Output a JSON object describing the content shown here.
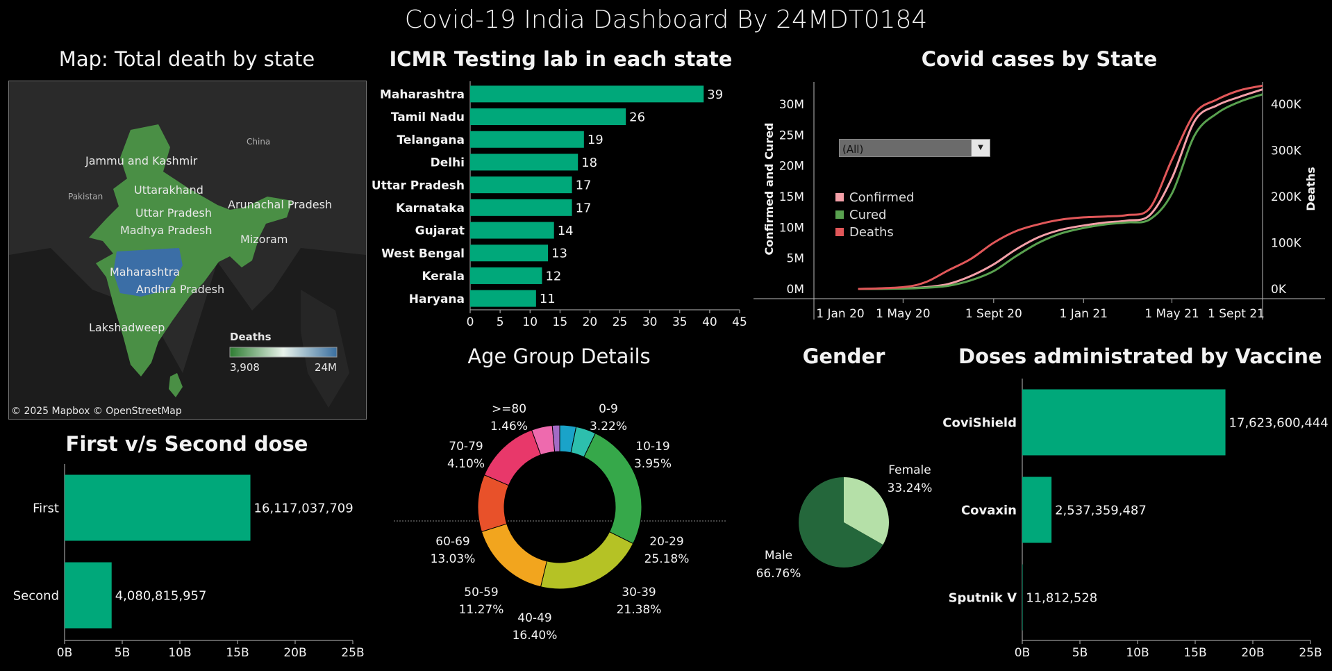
{
  "dashboard": {
    "title": "Covid-19 India Dashboard By 24MDT0184"
  },
  "map": {
    "title": "Map: Total death by state",
    "attribution": "© 2025 Mapbox © OpenStreetMap",
    "country_labels": [
      "China",
      "Pakistan"
    ],
    "state_labels": [
      "Jammu and Kashmir",
      "Uttarakhand",
      "Arunachal Pradesh",
      "Uttar Pradesh",
      "Madhya Pradesh",
      "Mizoram",
      "Maharashtra",
      "Andhra Pradesh",
      "Lakshadweep"
    ],
    "legend_title": "Deaths",
    "legend_min": "3,908",
    "legend_max": "24M",
    "colors": {
      "low": "#2e7d32",
      "mid": "#e8f2ea",
      "high": "#3a6fa0",
      "land": "#4a8f45",
      "highlight": "#3b6ea6"
    }
  },
  "chart_data": [
    {
      "type": "bar",
      "orientation": "horizontal",
      "title": "ICMR Testing lab in each state",
      "categories": [
        "Maharashtra",
        "Tamil Nadu",
        "Telangana",
        "Delhi",
        "Uttar Pradesh",
        "Karnataka",
        "Gujarat",
        "West Bengal",
        "Kerala",
        "Haryana"
      ],
      "values": [
        39,
        26,
        19,
        18,
        17,
        17,
        14,
        13,
        12,
        11
      ],
      "xlim": [
        0,
        45
      ],
      "xticks": [
        "0",
        "5",
        "10",
        "15",
        "20",
        "25",
        "30",
        "35",
        "40",
        "45"
      ],
      "color": "#00a87a"
    },
    {
      "type": "line",
      "title": "Covid cases by State",
      "filter": "(All)",
      "ylabel": "Confirmed and Cured",
      "y2label": "Deaths",
      "yticks": [
        "30M",
        "25M",
        "20M",
        "15M",
        "10M",
        "5M",
        "0M"
      ],
      "y2ticks": [
        "400K",
        "300K",
        "200K",
        "100K",
        "0K"
      ],
      "xticks": [
        "1 Jan 20",
        "1 May 20",
        "1 Sept 20",
        "1 Jan 21",
        "1 May 21",
        "1 Sept 21"
      ],
      "x": [
        "2020-03-01",
        "2020-05-01",
        "2020-06-01",
        "2020-07-01",
        "2020-08-01",
        "2020-09-01",
        "2020-10-01",
        "2020-11-01",
        "2020-12-01",
        "2021-01-01",
        "2021-02-01",
        "2021-03-01",
        "2021-04-01",
        "2021-05-01",
        "2021-06-01",
        "2021-07-01",
        "2021-08-01",
        "2021-09-01"
      ],
      "series": [
        {
          "name": "Confirmed",
          "axis": "left",
          "color": "#f4a0a8",
          "values": [
            0,
            0.1,
            0.3,
            0.8,
            2.1,
            4.0,
            6.4,
            8.4,
            9.6,
            10.3,
            10.8,
            11.1,
            12.0,
            18.0,
            27.3,
            29.8,
            31.2,
            32.4
          ]
        },
        {
          "name": "Cured",
          "axis": "left",
          "color": "#59a14f",
          "values": [
            0,
            0.05,
            0.2,
            0.5,
            1.4,
            2.9,
            5.3,
            7.5,
            9.0,
            9.9,
            10.5,
            10.8,
            11.3,
            15.5,
            25.0,
            28.5,
            30.4,
            31.6
          ]
        },
        {
          "name": "Deaths",
          "axis": "right",
          "color": "#e15759",
          "values": [
            0,
            3908,
            15000,
            40000,
            65000,
            100000,
            125000,
            140000,
            150000,
            155000,
            157000,
            160000,
            175000,
            280000,
            380000,
            410000,
            430000,
            440000
          ]
        }
      ]
    },
    {
      "type": "pie",
      "title": "Age Group Details",
      "donut": true,
      "categories": [
        "0-9",
        "10-19",
        "20-29",
        "30-39",
        "40-49",
        "50-59",
        "60-69",
        "70-79",
        ">=80"
      ],
      "values": [
        3.22,
        3.95,
        25.18,
        21.38,
        16.4,
        11.27,
        13.03,
        4.1,
        1.46
      ],
      "labels": [
        "3.22%",
        "3.95%",
        "25.18%",
        "21.38%",
        "16.40%",
        "11.27%",
        "13.03%",
        "4.10%",
        "1.46%"
      ],
      "colors": [
        "#1aa3c9",
        "#2dbfad",
        "#36a84a",
        "#b5c225",
        "#f2a51e",
        "#e8512a",
        "#e8386a",
        "#ee6aae",
        "#a36bc5"
      ]
    },
    {
      "type": "pie",
      "title": "Gender",
      "categories": [
        "Female",
        "Male"
      ],
      "values": [
        33.24,
        66.76
      ],
      "labels": [
        "33.24%",
        "66.76%"
      ],
      "colors": [
        "#b5e0a8",
        "#24673b"
      ]
    },
    {
      "type": "bar",
      "orientation": "horizontal",
      "title": "First v/s Second dose",
      "categories": [
        "First",
        "Second"
      ],
      "values": [
        16117037709,
        4080815957
      ],
      "labels": [
        "16,117,037,709",
        "4,080,815,957"
      ],
      "xlim": [
        0,
        25000000000
      ],
      "xticks": [
        "0B",
        "5B",
        "10B",
        "15B",
        "20B",
        "25B"
      ],
      "color": "#00a87a"
    },
    {
      "type": "bar",
      "orientation": "horizontal",
      "title": "Doses administrated by Vaccine",
      "categories": [
        "CoviShield",
        "Covaxin",
        "Sputnik V"
      ],
      "values": [
        17623600444,
        2537359487,
        11812528
      ],
      "labels": [
        "17,623,600,444",
        "2,537,359,487",
        "11,812,528"
      ],
      "xlim": [
        0,
        25000000000
      ],
      "xticks": [
        "0B",
        "5B",
        "10B",
        "15B",
        "20B",
        "25B"
      ],
      "color": "#00a87a"
    }
  ]
}
